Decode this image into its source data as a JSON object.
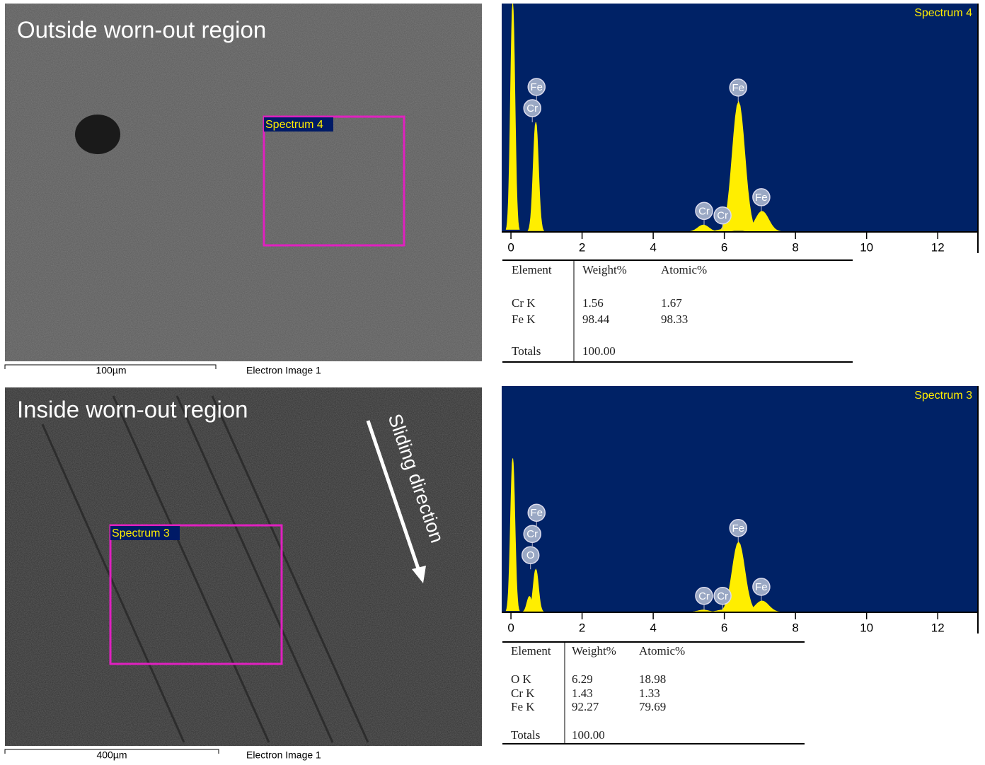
{
  "panels": [
    {
      "caption": "Outside worn-out region",
      "box_label": "Spectrum 4",
      "scale_bar": "100µm",
      "image_label": "Electron Image 1",
      "spectrum": {
        "title": "Spectrum 4",
        "xlim": [
          -0.26,
          13.13
        ],
        "xticks": [
          0,
          2,
          4,
          6,
          8,
          10,
          12
        ],
        "ylim": [
          0,
          100
        ],
        "peaks": [
          {
            "x": 0.05,
            "height": 100
          },
          {
            "x": 0.7,
            "height": 48
          },
          {
            "x": 5.41,
            "height": 3
          },
          {
            "x": 5.95,
            "height": 1
          },
          {
            "x": 6.4,
            "height": 57
          },
          {
            "x": 7.06,
            "height": 9
          }
        ],
        "markers": [
          {
            "x": 0.6,
            "label": "Cr"
          },
          {
            "x": 0.72,
            "label": "Fe"
          },
          {
            "x": 5.43,
            "label": "Cr"
          },
          {
            "x": 5.95,
            "label": "Cr"
          },
          {
            "x": 6.39,
            "label": "Fe"
          },
          {
            "x": 7.04,
            "label": "Fe"
          }
        ]
      },
      "table": {
        "header": [
          "Element",
          "Weight%",
          "Atomic%"
        ],
        "rows": [
          [
            "Cr K",
            "1.56",
            "1.67"
          ],
          [
            "Fe K",
            "98.44",
            "98.33"
          ]
        ],
        "totals": [
          "Totals",
          "100.00"
        ]
      }
    },
    {
      "caption": "Inside worn-out region",
      "box_label": "Spectrum 3",
      "scale_bar": "400µm",
      "image_label": "Electron Image 1",
      "arrow_label": "Sliding direction",
      "spectrum": {
        "title": "Spectrum 3",
        "xlim": [
          -0.26,
          13.13
        ],
        "xticks": [
          0,
          2,
          4,
          6,
          8,
          10,
          12
        ],
        "ylim": [
          0,
          100
        ],
        "peaks": [
          {
            "x": 0.05,
            "height": 68
          },
          {
            "x": 0.52,
            "height": 7
          },
          {
            "x": 0.7,
            "height": 19
          },
          {
            "x": 5.41,
            "height": 1
          },
          {
            "x": 5.95,
            "height": 1
          },
          {
            "x": 6.4,
            "height": 31
          },
          {
            "x": 7.06,
            "height": 5
          }
        ],
        "markers": [
          {
            "x": 0.55,
            "label": "O"
          },
          {
            "x": 0.6,
            "label": "Cr"
          },
          {
            "x": 0.72,
            "label": "Fe"
          },
          {
            "x": 5.43,
            "label": "Cr"
          },
          {
            "x": 5.95,
            "label": "Cr"
          },
          {
            "x": 6.39,
            "label": "Fe"
          },
          {
            "x": 7.04,
            "label": "Fe"
          }
        ]
      },
      "table": {
        "header": [
          "Element",
          "Weight%",
          "Atomic%"
        ],
        "rows": [
          [
            "O K",
            "6.29",
            "18.98"
          ],
          [
            "Cr K",
            "1.43",
            "1.33"
          ],
          [
            "Fe K",
            "92.27",
            "79.69"
          ]
        ],
        "totals": [
          "Totals",
          "100.00"
        ]
      }
    }
  ]
}
